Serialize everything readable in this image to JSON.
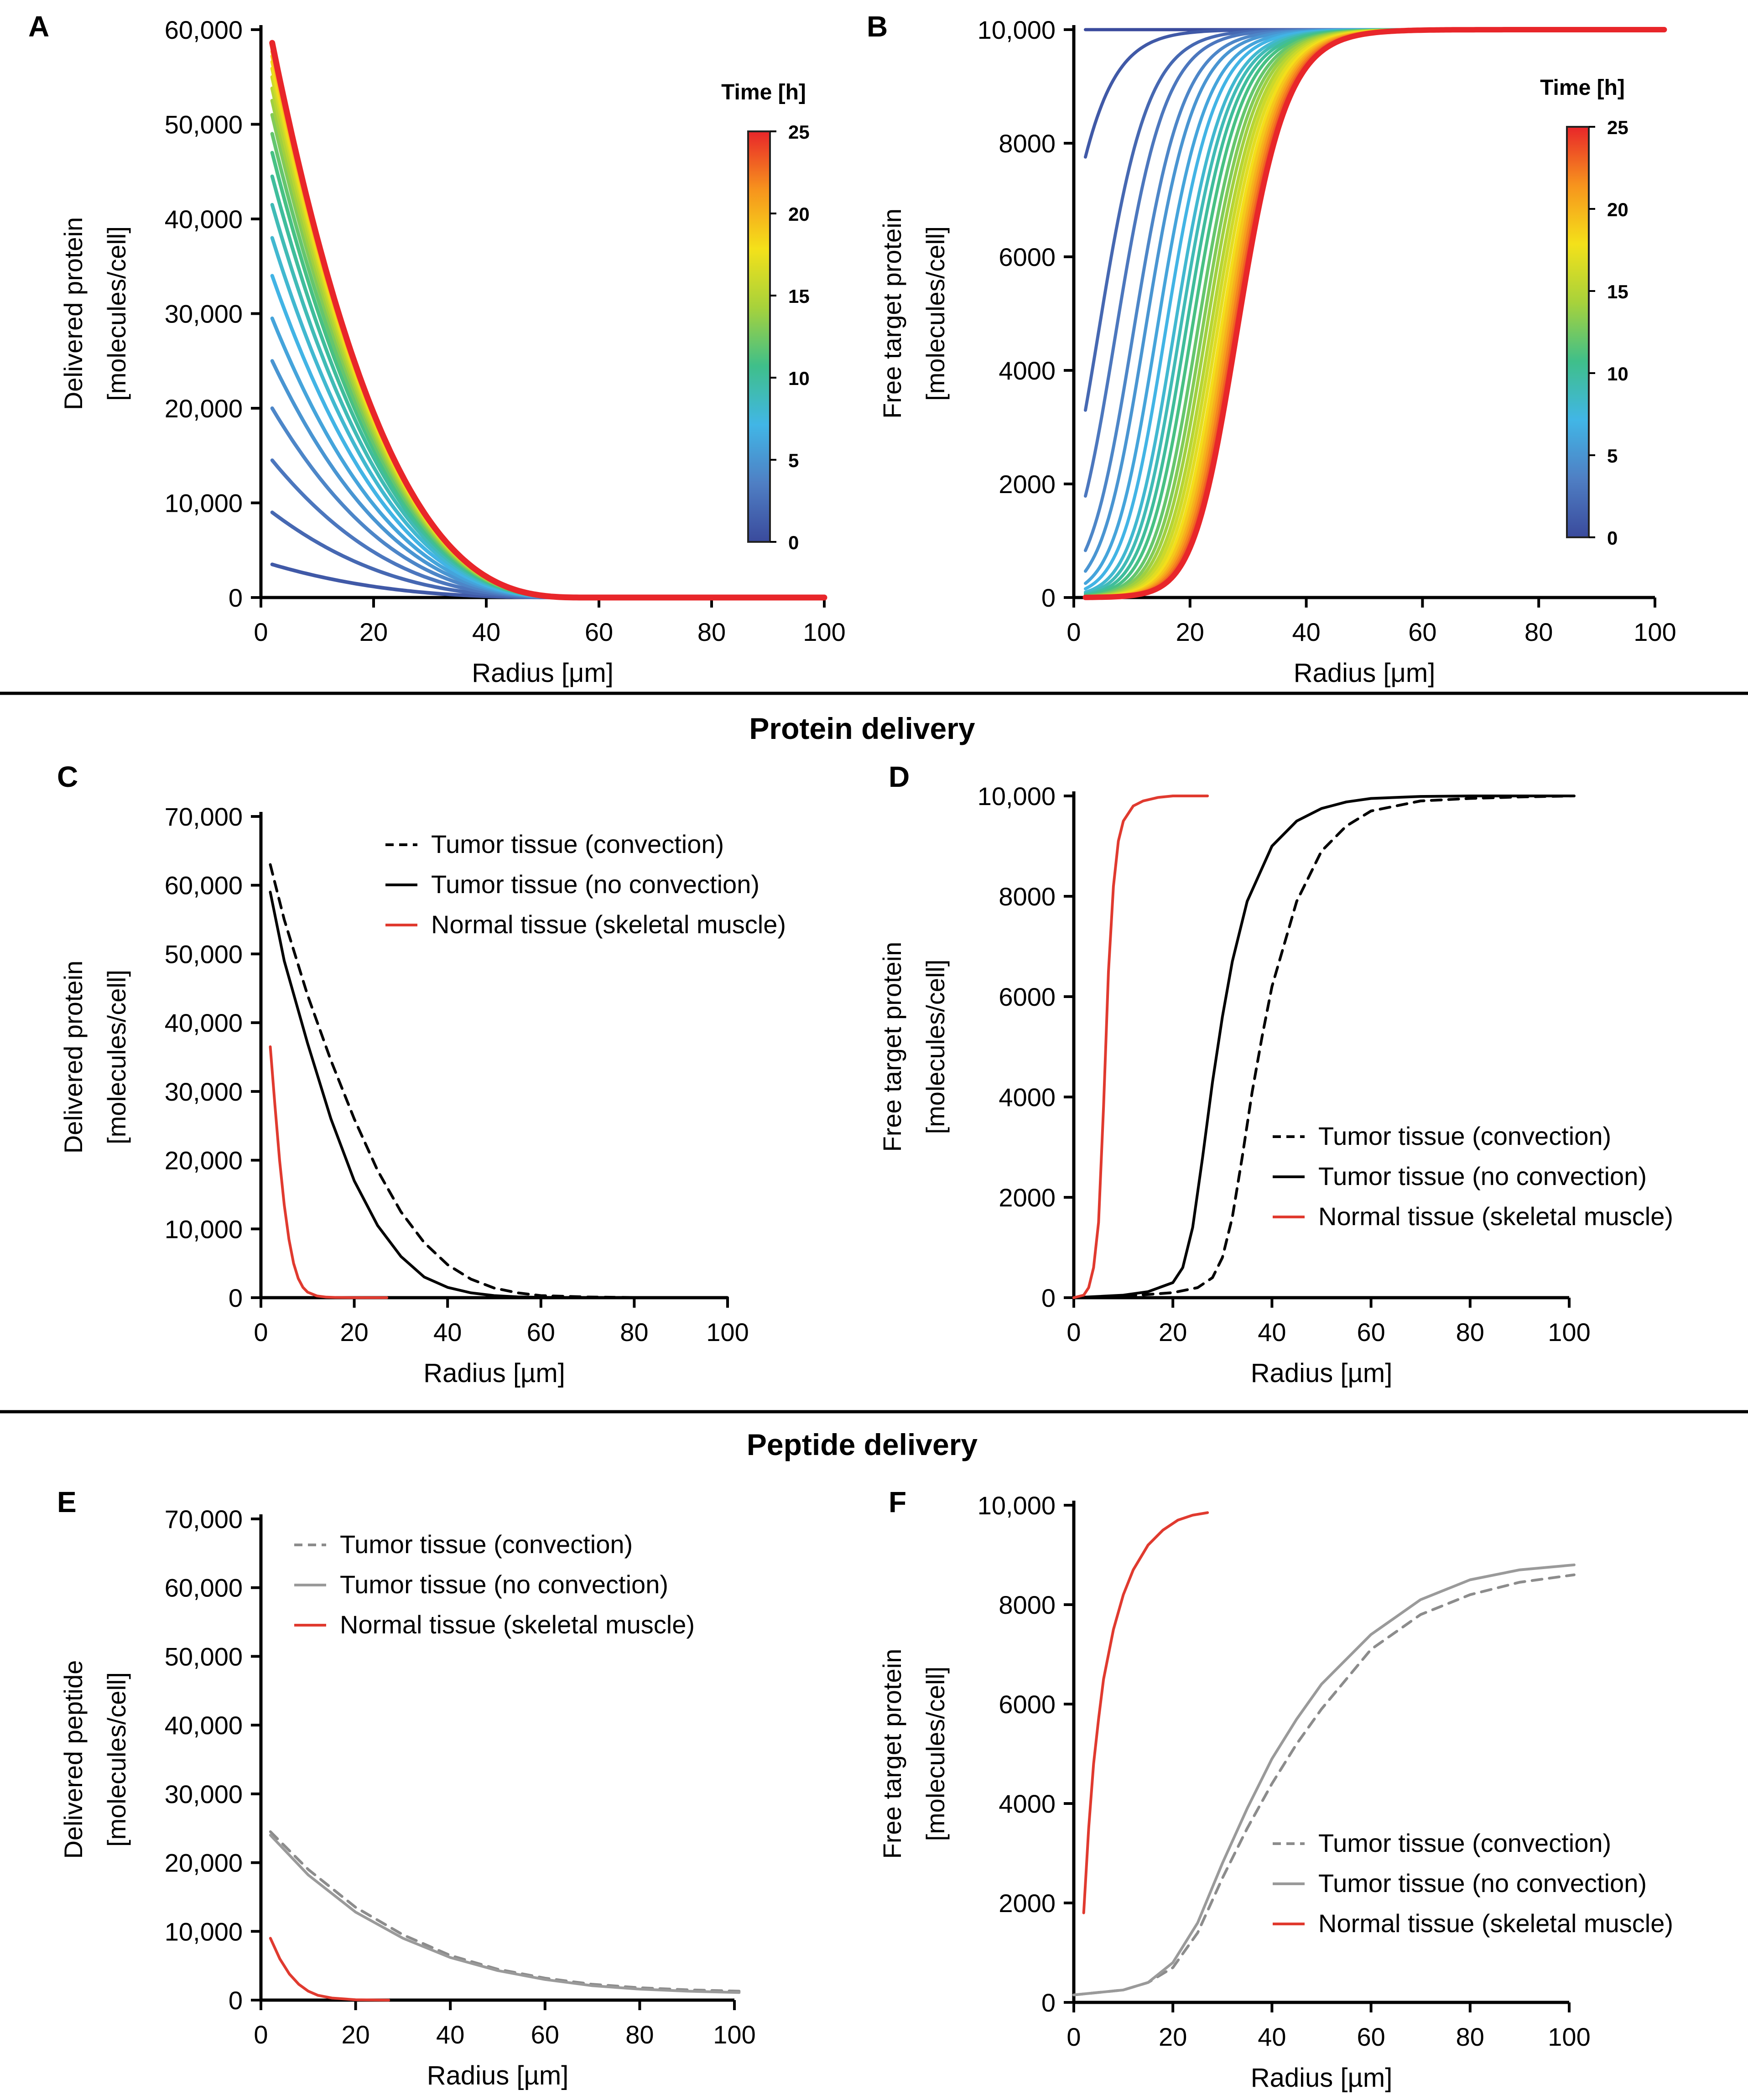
{
  "section_titles": {
    "protein": "Protein delivery",
    "peptide": "Peptide delivery"
  },
  "colorbar": {
    "title": "Time [h]",
    "ticks": [
      "0",
      "5",
      "10",
      "15",
      "20",
      "25"
    ],
    "stops": [
      "#3a4a9c",
      "#4f7fc4",
      "#41b6e6",
      "#3fbf8a",
      "#a7d23b",
      "#f4e11a",
      "#f7941d",
      "#e8262a"
    ]
  },
  "chart_data": [
    {
      "id": "A",
      "panel_label": "A",
      "type": "line",
      "xlabel": "Radius [μm]",
      "ylabel": "Delivered protein",
      "ylabel2": "[molecules/cell]",
      "xlim": [
        0,
        100
      ],
      "ylim": [
        0,
        60000
      ],
      "xticks": [
        "0",
        "20",
        "40",
        "60",
        "80",
        "100"
      ],
      "yticks": [
        "0",
        "10,000",
        "20,000",
        "30,000",
        "40,000",
        "50,000",
        "60,000"
      ],
      "colorbar_title": "Time [h]",
      "series_times_h": [
        1,
        2,
        3,
        4,
        5,
        6,
        7,
        8,
        9,
        10,
        11,
        12,
        13,
        14,
        15,
        16,
        17,
        18,
        19,
        20,
        21,
        22,
        23,
        24,
        25
      ],
      "series_peak_values": [
        3500,
        9000,
        14500,
        20000,
        25000,
        29500,
        34000,
        38000,
        41500,
        44500,
        47000,
        49000,
        51000,
        52500,
        53800,
        55000,
        55900,
        56600,
        57200,
        57700,
        58000,
        58200,
        58400,
        58500,
        58600
      ],
      "profile_note": "each curve decays from its peak near radius 2 to about 0 by radius 55-60"
    },
    {
      "id": "B",
      "panel_label": "B",
      "type": "line",
      "xlabel": "Radius [μm]",
      "ylabel": "Free target protein",
      "ylabel2": "[molecules/cell]",
      "xlim": [
        0,
        100
      ],
      "ylim": [
        0,
        10000
      ],
      "xticks": [
        "0",
        "20",
        "40",
        "60",
        "80",
        "100"
      ],
      "yticks": [
        "0",
        "2000",
        "4000",
        "6000",
        "8000",
        "10,000"
      ],
      "colorbar_title": "Time [h]",
      "series_times_h": [
        0,
        1,
        2,
        3,
        4,
        5,
        6,
        7,
        8,
        9,
        10,
        11,
        12,
        13,
        14,
        15,
        16,
        17,
        18,
        19,
        20,
        21,
        22,
        23,
        24,
        25
      ],
      "series_midpoint_radius": [
        -1000,
        -6,
        2,
        5,
        8,
        10,
        12,
        13.5,
        15,
        16,
        17,
        18,
        19,
        19.8,
        20.5,
        21.2,
        21.8,
        22.4,
        23,
        23.5,
        24,
        24.4,
        24.8,
        25.2,
        25.5,
        25.8
      ],
      "profile_note": "sigmoidal rise from about 0 to 10,000; at time 0 the level is 10,000 everywhere"
    },
    {
      "id": "C",
      "panel_label": "C",
      "type": "line",
      "xlabel": "Radius [µm]",
      "ylabel": "Delivered protein",
      "ylabel2": "[molecules/cell]",
      "xlim": [
        0,
        100
      ],
      "ylim": [
        0,
        70000
      ],
      "xticks": [
        "0",
        "20",
        "40",
        "60",
        "80",
        "100"
      ],
      "yticks": [
        "0",
        "10,000",
        "20,000",
        "30,000",
        "40,000",
        "50,000",
        "60,000",
        "70,000"
      ],
      "legend_position": "top-right",
      "series": [
        {
          "name": "Tumor tissue (convection)",
          "style": "dashed",
          "color": "#000000",
          "x": [
            2,
            5,
            10,
            15,
            20,
            25,
            30,
            35,
            40,
            45,
            50,
            55,
            60,
            70,
            80,
            90,
            100
          ],
          "values": [
            63000,
            55000,
            44000,
            34500,
            26000,
            18500,
            12500,
            8000,
            4800,
            2700,
            1400,
            700,
            300,
            100,
            30,
            10,
            0
          ]
        },
        {
          "name": "Tumor tissue (no convection)",
          "style": "solid",
          "color": "#000000",
          "x": [
            2,
            5,
            10,
            15,
            20,
            25,
            30,
            35,
            40,
            45,
            50,
            55,
            60,
            70,
            80,
            90,
            100
          ],
          "values": [
            59000,
            49000,
            37000,
            26000,
            17000,
            10500,
            6000,
            3000,
            1500,
            700,
            300,
            120,
            50,
            10,
            0,
            0,
            0
          ]
        },
        {
          "name": "Normal tissue (skeletal muscle)",
          "style": "solid",
          "color": "#e03a2f",
          "x": [
            2,
            3,
            4,
            5,
            6,
            7,
            8,
            9,
            10,
            12,
            14,
            16,
            20,
            27
          ],
          "values": [
            36500,
            28000,
            20000,
            13500,
            8500,
            5000,
            2800,
            1500,
            800,
            250,
            80,
            30,
            5,
            0
          ]
        }
      ]
    },
    {
      "id": "D",
      "panel_label": "D",
      "type": "line",
      "xlabel": "Radius [µm]",
      "ylabel": "Free target protein",
      "ylabel2": "[molecules/cell]",
      "xlim": [
        0,
        100
      ],
      "ylim": [
        0,
        10000
      ],
      "xticks": [
        "0",
        "20",
        "40",
        "60",
        "80",
        "100"
      ],
      "yticks": [
        "0",
        "2000",
        "4000",
        "6000",
        "8000",
        "10,000"
      ],
      "legend_position": "bottom-right",
      "series": [
        {
          "name": "Tumor tissue (convection)",
          "style": "dashed",
          "color": "#000000",
          "x": [
            0,
            10,
            20,
            25,
            28,
            30,
            32,
            34,
            36,
            38,
            40,
            45,
            50,
            55,
            60,
            70,
            80,
            90,
            101
          ],
          "values": [
            0,
            30,
            100,
            200,
            400,
            800,
            1600,
            2800,
            4100,
            5200,
            6200,
            7900,
            8900,
            9400,
            9700,
            9900,
            9950,
            9980,
            10000
          ]
        },
        {
          "name": "Tumor tissue (no convection)",
          "style": "solid",
          "color": "#000000",
          "x": [
            0,
            10,
            15,
            20,
            22,
            24,
            26,
            28,
            30,
            32,
            35,
            40,
            45,
            50,
            55,
            60,
            70,
            80,
            101
          ],
          "values": [
            0,
            50,
            120,
            300,
            600,
            1400,
            2800,
            4300,
            5600,
            6700,
            7900,
            9000,
            9500,
            9750,
            9880,
            9950,
            9990,
            10000,
            10000
          ]
        },
        {
          "name": "Normal tissue (skeletal muscle)",
          "style": "solid",
          "color": "#e03a2f",
          "x": [
            0,
            2,
            3,
            4,
            5,
            6,
            7,
            8,
            9,
            10,
            12,
            14,
            17,
            20,
            27
          ],
          "values": [
            0,
            50,
            200,
            600,
            1500,
            3800,
            6500,
            8200,
            9100,
            9500,
            9800,
            9900,
            9970,
            10000,
            10000
          ]
        }
      ]
    },
    {
      "id": "E",
      "panel_label": "E",
      "type": "line",
      "xlabel": "Radius [µm]",
      "ylabel": "Delivered peptide",
      "ylabel2": "[molecules/cell]",
      "xlim": [
        0,
        100
      ],
      "ylim": [
        0,
        70000
      ],
      "xticks": [
        "0",
        "20",
        "40",
        "60",
        "80",
        "100"
      ],
      "yticks": [
        "0",
        "10,000",
        "20,000",
        "30,000",
        "40,000",
        "50,000",
        "60,000",
        "70,000"
      ],
      "legend_position": "top-right",
      "series": [
        {
          "name": "Tumor tissue (convection)",
          "style": "dashed",
          "color": "#8c8c8c",
          "x": [
            2,
            10,
            20,
            30,
            40,
            50,
            60,
            70,
            80,
            90,
            101
          ],
          "values": [
            24500,
            19000,
            13500,
            9500,
            6500,
            4500,
            3200,
            2300,
            1800,
            1500,
            1300
          ]
        },
        {
          "name": "Tumor tissue (no convection)",
          "style": "solid",
          "color": "#9a9a9a",
          "x": [
            2,
            10,
            20,
            30,
            40,
            50,
            60,
            70,
            80,
            90,
            101
          ],
          "values": [
            24000,
            18200,
            12800,
            9000,
            6200,
            4300,
            3000,
            2100,
            1600,
            1300,
            1100
          ]
        },
        {
          "name": "Normal tissue (skeletal muscle)",
          "style": "solid",
          "color": "#e03a2f",
          "x": [
            2,
            4,
            6,
            8,
            10,
            12,
            15,
            20,
            27
          ],
          "values": [
            9000,
            6000,
            3800,
            2300,
            1300,
            700,
            300,
            50,
            0
          ]
        }
      ]
    },
    {
      "id": "F",
      "panel_label": "F",
      "type": "line",
      "xlabel": "Radius [µm]",
      "ylabel": "Free target protein",
      "ylabel2": "[molecules/cell]",
      "xlim": [
        0,
        100
      ],
      "ylim": [
        0,
        10000
      ],
      "xticks": [
        "0",
        "20",
        "40",
        "60",
        "80",
        "100"
      ],
      "yticks": [
        "0",
        "2000",
        "4000",
        "6000",
        "8000",
        "10,000"
      ],
      "legend_position": "bottom-right",
      "series": [
        {
          "name": "Tumor tissue (convection)",
          "style": "dashed",
          "color": "#8c8c8c",
          "x": [
            0,
            10,
            15,
            20,
            25,
            30,
            35,
            40,
            45,
            50,
            60,
            70,
            80,
            90,
            101
          ],
          "values": [
            150,
            250,
            400,
            700,
            1400,
            2500,
            3500,
            4400,
            5200,
            5900,
            7100,
            7800,
            8200,
            8450,
            8600
          ]
        },
        {
          "name": "Tumor tissue (no convection)",
          "style": "solid",
          "color": "#9a9a9a",
          "x": [
            0,
            10,
            15,
            20,
            25,
            30,
            35,
            40,
            45,
            50,
            60,
            70,
            80,
            90,
            101
          ],
          "values": [
            150,
            250,
            400,
            800,
            1600,
            2800,
            3900,
            4900,
            5700,
            6400,
            7400,
            8100,
            8500,
            8700,
            8800
          ]
        },
        {
          "name": "Normal tissue (skeletal muscle)",
          "style": "solid",
          "color": "#e03a2f",
          "x": [
            2,
            3,
            4,
            5,
            6,
            8,
            10,
            12,
            15,
            18,
            21,
            24,
            27
          ],
          "values": [
            1800,
            3500,
            4800,
            5700,
            6500,
            7500,
            8200,
            8700,
            9200,
            9500,
            9700,
            9800,
            9850
          ]
        }
      ]
    }
  ]
}
